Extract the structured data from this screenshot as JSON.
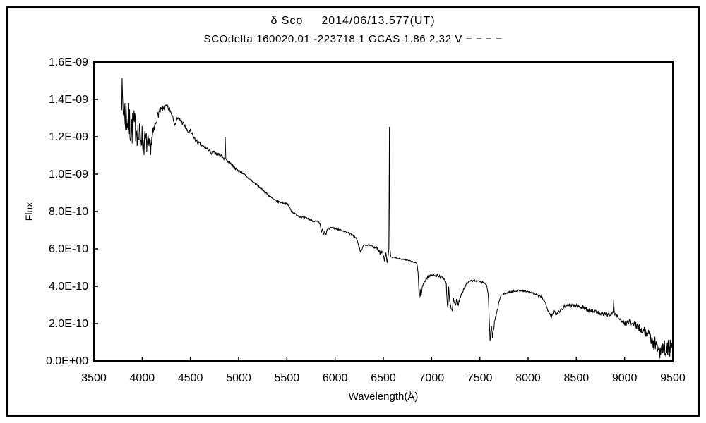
{
  "page": {
    "background": "#ffffff",
    "border_color": "#000000"
  },
  "header": {
    "title_star": "δ Sco",
    "title_date": "2014/06/13.577(UT)",
    "subtitle": "SCOdelta 160020.01 -223718.1 GCAS 1.86 2.32 V − − − −"
  },
  "chart_data": {
    "type": "line",
    "title": "δ Sco 2014/06/13.577(UT)",
    "subtitle": "SCOdelta 160020.01 -223718.1 GCAS 1.86 2.32 V − − − −",
    "xlabel": "Wavelength(Å)",
    "ylabel": "Flux",
    "xlim": [
      3500,
      9500
    ],
    "ylim_e9": [
      0,
      1.6
    ],
    "grid": "off",
    "line_color": "#000000",
    "axis_color": "#000000",
    "x_ticks": [
      {
        "value": 3500,
        "label": "3500"
      },
      {
        "value": 4000,
        "label": "4000"
      },
      {
        "value": 4500,
        "label": "4500"
      },
      {
        "value": 5000,
        "label": "5000"
      },
      {
        "value": 5500,
        "label": "5500"
      },
      {
        "value": 6000,
        "label": "6000"
      },
      {
        "value": 6500,
        "label": "6500"
      },
      {
        "value": 7000,
        "label": "7000"
      },
      {
        "value": 7500,
        "label": "7500"
      },
      {
        "value": 8000,
        "label": "8000"
      },
      {
        "value": 8500,
        "label": "8500"
      },
      {
        "value": 9000,
        "label": "9000"
      },
      {
        "value": 9500,
        "label": "9500"
      }
    ],
    "y_ticks": [
      {
        "value_e9": 0.0,
        "label": "0.0E+00"
      },
      {
        "value_e9": 0.2,
        "label": "2.0E-10"
      },
      {
        "value_e9": 0.4,
        "label": "4.0E-10"
      },
      {
        "value_e9": 0.6,
        "label": "6.0E-10"
      },
      {
        "value_e9": 0.8,
        "label": "8.0E-10"
      },
      {
        "value_e9": 1.0,
        "label": "1.0E-09"
      },
      {
        "value_e9": 1.2,
        "label": "1.2E-09"
      },
      {
        "value_e9": 1.4,
        "label": "1.4E-09"
      },
      {
        "value_e9": 1.6,
        "label": "1.6E-09"
      }
    ],
    "noise_seed": 7,
    "sample_step_angstrom": 4,
    "points_format": "[wavelength_angstrom, flux_e-9, noise_amplitude_e-9]",
    "series": [
      {
        "name": "spectrum",
        "control_points": [
          [
            3784,
            1.45,
            0.07
          ],
          [
            3792,
            1.4,
            0.12
          ],
          [
            3805,
            1.34,
            0.13
          ],
          [
            3825,
            1.32,
            0.12
          ],
          [
            3845,
            1.3,
            0.11
          ],
          [
            3866,
            1.27,
            0.11
          ],
          [
            3889,
            1.24,
            0.1
          ],
          [
            3912,
            1.26,
            0.09
          ],
          [
            3940,
            1.25,
            0.08
          ],
          [
            3968,
            1.19,
            0.09
          ],
          [
            3995,
            1.21,
            0.07
          ],
          [
            4012,
            1.16,
            0.08
          ],
          [
            4032,
            1.18,
            0.06
          ],
          [
            4055,
            1.16,
            0.06
          ],
          [
            4077,
            1.13,
            0.06
          ],
          [
            4100,
            1.18,
            0.045
          ],
          [
            4125,
            1.24,
            0.035
          ],
          [
            4150,
            1.3,
            0.025
          ],
          [
            4180,
            1.335,
            0.02
          ],
          [
            4215,
            1.35,
            0.015
          ],
          [
            4250,
            1.36,
            0.015
          ],
          [
            4285,
            1.345,
            0.015
          ],
          [
            4318,
            1.31,
            0.012
          ],
          [
            4340,
            1.26,
            0.008
          ],
          [
            4362,
            1.3,
            0.01
          ],
          [
            4395,
            1.288,
            0.012
          ],
          [
            4440,
            1.26,
            0.012
          ],
          [
            4472,
            1.225,
            0.01
          ],
          [
            4500,
            1.23,
            0.012
          ],
          [
            4530,
            1.2,
            0.012
          ],
          [
            4560,
            1.175,
            0.012
          ],
          [
            4600,
            1.16,
            0.01
          ],
          [
            4650,
            1.142,
            0.01
          ],
          [
            4700,
            1.128,
            0.008
          ],
          [
            4714,
            1.105,
            0.005
          ],
          [
            4730,
            1.12,
            0.008
          ],
          [
            4770,
            1.11,
            0.008
          ],
          [
            4800,
            1.105,
            0.008
          ],
          [
            4830,
            1.098,
            0.006
          ],
          [
            4848,
            1.078,
            0.004
          ],
          [
            4856,
            1.09,
            0
          ],
          [
            4861,
            1.2,
            0
          ],
          [
            4867,
            1.085,
            0
          ],
          [
            4880,
            1.068,
            0.006
          ],
          [
            4920,
            1.058,
            0.006
          ],
          [
            4960,
            1.032,
            0.006
          ],
          [
            5000,
            1.018,
            0.006
          ],
          [
            5045,
            1.005,
            0.006
          ],
          [
            5090,
            0.982,
            0.006
          ],
          [
            5140,
            0.962,
            0.007
          ],
          [
            5185,
            0.945,
            0.006
          ],
          [
            5236,
            0.922,
            0.006
          ],
          [
            5290,
            0.897,
            0.006
          ],
          [
            5340,
            0.873,
            0.006
          ],
          [
            5390,
            0.856,
            0.005
          ],
          [
            5440,
            0.848,
            0.005
          ],
          [
            5510,
            0.838,
            0.005
          ],
          [
            5548,
            0.802,
            0.005
          ],
          [
            5580,
            0.788,
            0.005
          ],
          [
            5640,
            0.772,
            0.005
          ],
          [
            5700,
            0.765,
            0.005
          ],
          [
            5760,
            0.752,
            0.005
          ],
          [
            5825,
            0.745,
            0.005
          ],
          [
            5845,
            0.728,
            0.004
          ],
          [
            5860,
            0.688,
            0.005
          ],
          [
            5870,
            0.708,
            0.004
          ],
          [
            5882,
            0.675,
            0.005
          ],
          [
            5893,
            0.692,
            0.006
          ],
          [
            5903,
            0.673,
            0.005
          ],
          [
            5918,
            0.702,
            0.004
          ],
          [
            5955,
            0.715,
            0.004
          ],
          [
            6010,
            0.708,
            0.004
          ],
          [
            6080,
            0.697,
            0.004
          ],
          [
            6160,
            0.681,
            0.005
          ],
          [
            6222,
            0.655,
            0.005
          ],
          [
            6262,
            0.585,
            0.005
          ],
          [
            6302,
            0.623,
            0.004
          ],
          [
            6360,
            0.617,
            0.005
          ],
          [
            6430,
            0.606,
            0.007
          ],
          [
            6465,
            0.578,
            0.009
          ],
          [
            6490,
            0.589,
            0.01
          ],
          [
            6512,
            0.541,
            0.01
          ],
          [
            6526,
            0.571,
            0.012
          ],
          [
            6540,
            0.533,
            0.008
          ],
          [
            6550,
            0.562,
            0.004
          ],
          [
            6557,
            0.6,
            0
          ],
          [
            6563,
            1.253,
            0
          ],
          [
            6569,
            0.6,
            0
          ],
          [
            6577,
            0.558,
            0.003
          ],
          [
            6620,
            0.552,
            0.003
          ],
          [
            6700,
            0.545,
            0.003
          ],
          [
            6780,
            0.535,
            0.003
          ],
          [
            6848,
            0.522,
            0.003
          ],
          [
            6860,
            0.475,
            0.004
          ],
          [
            6872,
            0.335,
            0.01
          ],
          [
            6882,
            0.378,
            0.014
          ],
          [
            6890,
            0.338,
            0.01
          ],
          [
            6902,
            0.39,
            0.012
          ],
          [
            6917,
            0.418,
            0.01
          ],
          [
            6942,
            0.44,
            0.009
          ],
          [
            6977,
            0.455,
            0.008
          ],
          [
            7030,
            0.462,
            0.009
          ],
          [
            7082,
            0.452,
            0.009
          ],
          [
            7130,
            0.438,
            0.011
          ],
          [
            7152,
            0.405,
            0.012
          ],
          [
            7163,
            0.295,
            0.009
          ],
          [
            7170,
            0.285,
            0.007
          ],
          [
            7177,
            0.398,
            0.007
          ],
          [
            7188,
            0.318,
            0.011
          ],
          [
            7202,
            0.288,
            0.011
          ],
          [
            7214,
            0.266,
            0.009
          ],
          [
            7227,
            0.328,
            0.014
          ],
          [
            7242,
            0.298,
            0.014
          ],
          [
            7258,
            0.322,
            0.014
          ],
          [
            7276,
            0.3,
            0.012
          ],
          [
            7296,
            0.345,
            0.011
          ],
          [
            7322,
            0.372,
            0.009
          ],
          [
            7357,
            0.412,
            0.007
          ],
          [
            7400,
            0.428,
            0.005
          ],
          [
            7452,
            0.43,
            0.005
          ],
          [
            7505,
            0.424,
            0.005
          ],
          [
            7548,
            0.419,
            0.004
          ],
          [
            7572,
            0.404,
            0.004
          ],
          [
            7588,
            0.348,
            0.004
          ],
          [
            7597,
            0.228,
            0.008
          ],
          [
            7606,
            0.105,
            0.007
          ],
          [
            7614,
            0.158,
            0.009
          ],
          [
            7621,
            0.186,
            0.013
          ],
          [
            7631,
            0.12,
            0.009
          ],
          [
            7643,
            0.176,
            0.011
          ],
          [
            7659,
            0.226,
            0.009
          ],
          [
            7676,
            0.256,
            0.007
          ],
          [
            7696,
            0.312,
            0.007
          ],
          [
            7716,
            0.346,
            0.005
          ],
          [
            7742,
            0.358,
            0.005
          ],
          [
            7802,
            0.368,
            0.005
          ],
          [
            7862,
            0.375,
            0.005
          ],
          [
            7922,
            0.378,
            0.005
          ],
          [
            7982,
            0.372,
            0.005
          ],
          [
            8042,
            0.364,
            0.005
          ],
          [
            8102,
            0.352,
            0.006
          ],
          [
            8152,
            0.335,
            0.007
          ],
          [
            8188,
            0.3,
            0.009
          ],
          [
            8216,
            0.262,
            0.011
          ],
          [
            8242,
            0.236,
            0.011
          ],
          [
            8263,
            0.27,
            0.011
          ],
          [
            8286,
            0.246,
            0.011
          ],
          [
            8312,
            0.262,
            0.011
          ],
          [
            8342,
            0.276,
            0.009
          ],
          [
            8377,
            0.292,
            0.009
          ],
          [
            8420,
            0.301,
            0.011
          ],
          [
            8470,
            0.298,
            0.011
          ],
          [
            8522,
            0.291,
            0.011
          ],
          [
            8572,
            0.287,
            0.011
          ],
          [
            8622,
            0.271,
            0.011
          ],
          [
            8672,
            0.268,
            0.011
          ],
          [
            8722,
            0.258,
            0.011
          ],
          [
            8772,
            0.251,
            0.011
          ],
          [
            8822,
            0.248,
            0.011
          ],
          [
            8862,
            0.252,
            0.009
          ],
          [
            8881,
            0.262,
            0.005
          ],
          [
            8887,
            0.325,
            0
          ],
          [
            8894,
            0.252,
            0.005
          ],
          [
            8922,
            0.241,
            0.009
          ],
          [
            8952,
            0.226,
            0.011
          ],
          [
            8977,
            0.206,
            0.013
          ],
          [
            9012,
            0.201,
            0.015
          ],
          [
            9052,
            0.211,
            0.015
          ],
          [
            9092,
            0.196,
            0.017
          ],
          [
            9132,
            0.186,
            0.019
          ],
          [
            9172,
            0.171,
            0.021
          ],
          [
            9212,
            0.156,
            0.024
          ],
          [
            9252,
            0.141,
            0.029
          ],
          [
            9287,
            0.112,
            0.034
          ],
          [
            9322,
            0.078,
            0.048
          ],
          [
            9362,
            0.068,
            0.054
          ],
          [
            9402,
            0.072,
            0.054
          ],
          [
            9442,
            0.062,
            0.05
          ],
          [
            9472,
            0.066,
            0.054
          ],
          [
            9494,
            0.082,
            0.028
          ],
          [
            9500,
            0.1,
            0
          ]
        ]
      }
    ]
  }
}
